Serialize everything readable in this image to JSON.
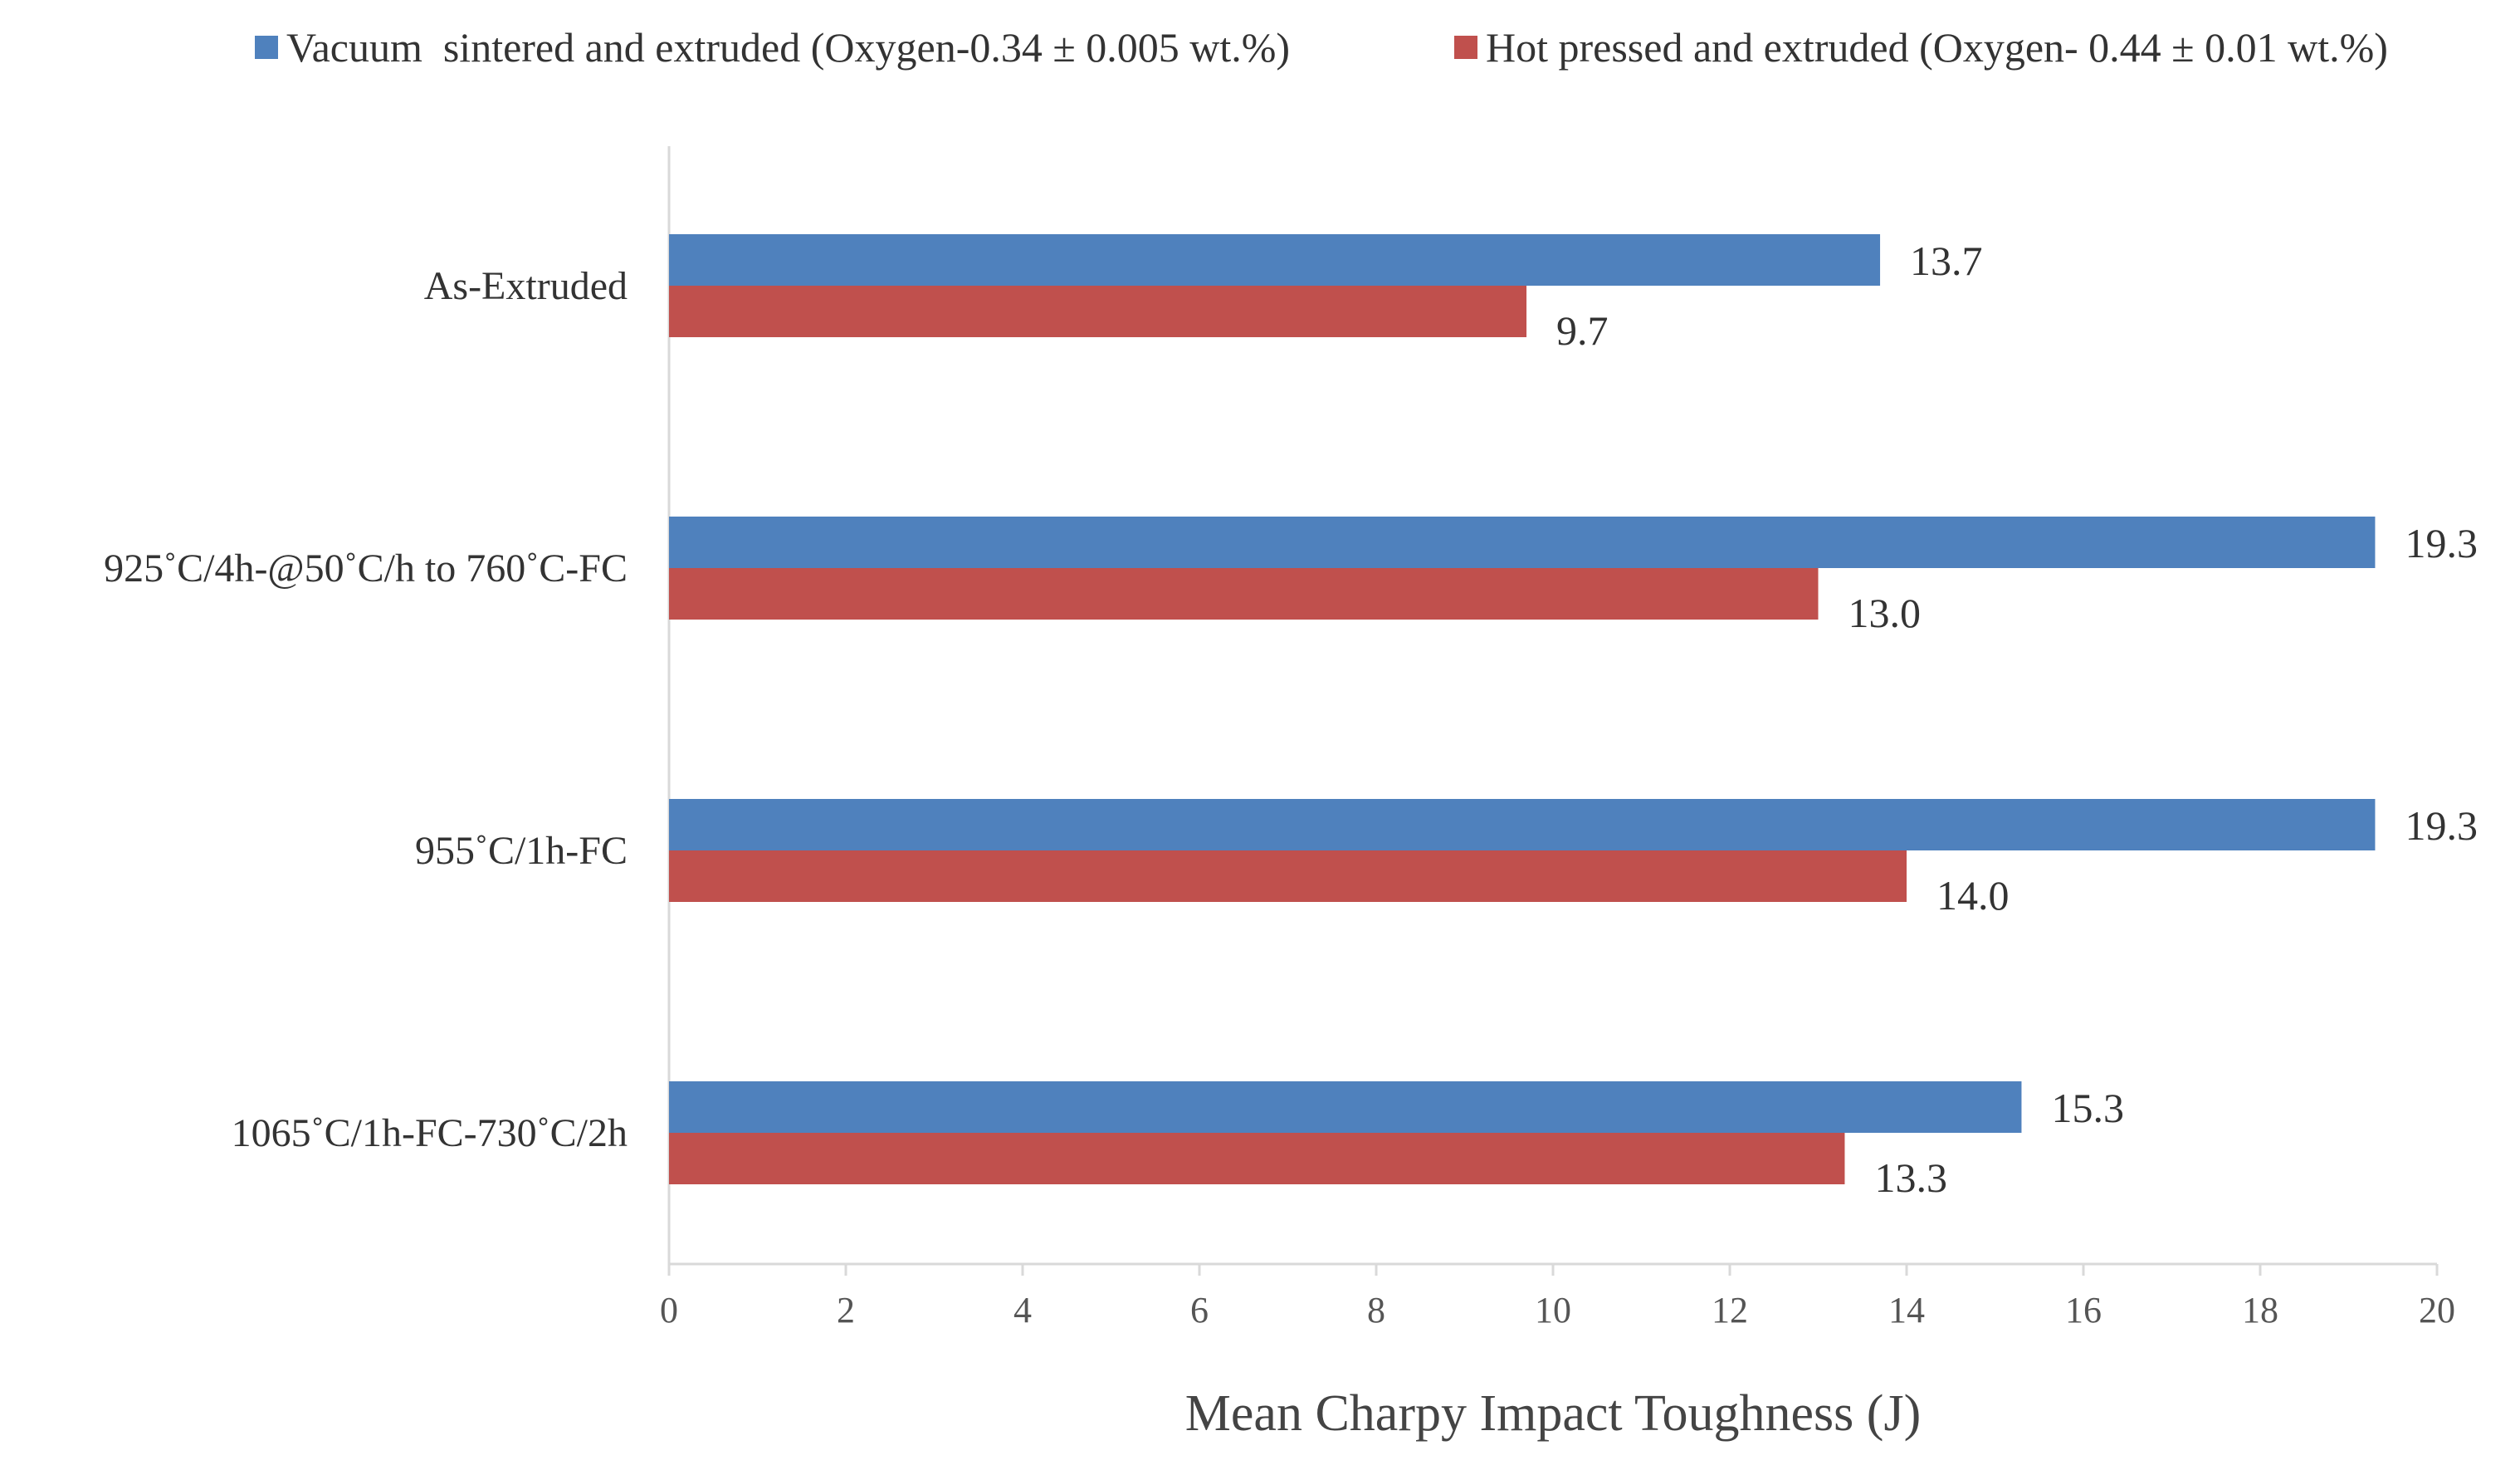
{
  "chart_data": {
    "type": "bar",
    "orientation": "horizontal",
    "title": "",
    "xlabel": "Mean Charpy Impact Toughness (J)",
    "ylabel": "",
    "xlim": [
      0,
      20
    ],
    "xticks": [
      0,
      2,
      4,
      6,
      8,
      10,
      12,
      14,
      16,
      18,
      20
    ],
    "grid": false,
    "legend_position": "top",
    "categories": [
      "As-Extruded",
      "925˚C/4h-@50˚C/h to 760˚C-FC",
      "955˚C/1h-FC",
      "1065˚C/1h-FC-730˚C/2h"
    ],
    "series": [
      {
        "name": "Vacuum  sintered and extruded (Oxygen-0.34 ± 0.005 wt.%)",
        "color": "#4F81BD",
        "values": [
          13.7,
          19.3,
          19.3,
          15.3
        ],
        "labels": [
          "13.7",
          "19.3",
          "19.3",
          "15.3"
        ]
      },
      {
        "name": "Hot pressed and extruded (Oxygen- 0.44 ± 0.01 wt.%)",
        "color": "#C0504D",
        "values": [
          9.7,
          13.0,
          14.0,
          13.3
        ],
        "labels": [
          "9.7",
          "13.0",
          "14.0",
          "13.3"
        ]
      }
    ]
  }
}
